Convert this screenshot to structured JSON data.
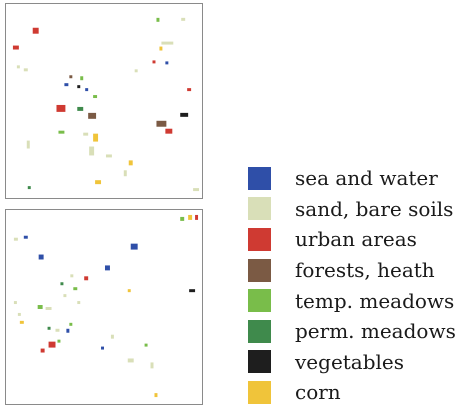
{
  "legend": {
    "items": [
      {
        "label": "sea and water",
        "color": "#2f4fa8"
      },
      {
        "label": "sand, bare soils",
        "color": "#d9dfb8"
      },
      {
        "label": "urban areas",
        "color": "#cf3a32"
      },
      {
        "label": "forests, heath",
        "color": "#7b5a44"
      },
      {
        "label": "temp. meadows",
        "color": "#79bd4a"
      },
      {
        "label": "perm. meadows",
        "color": "#3f8a4c"
      },
      {
        "label": "vegetables",
        "color": "#1e1e1e"
      },
      {
        "label": "corn",
        "color": "#f0c43a"
      }
    ]
  }
}
